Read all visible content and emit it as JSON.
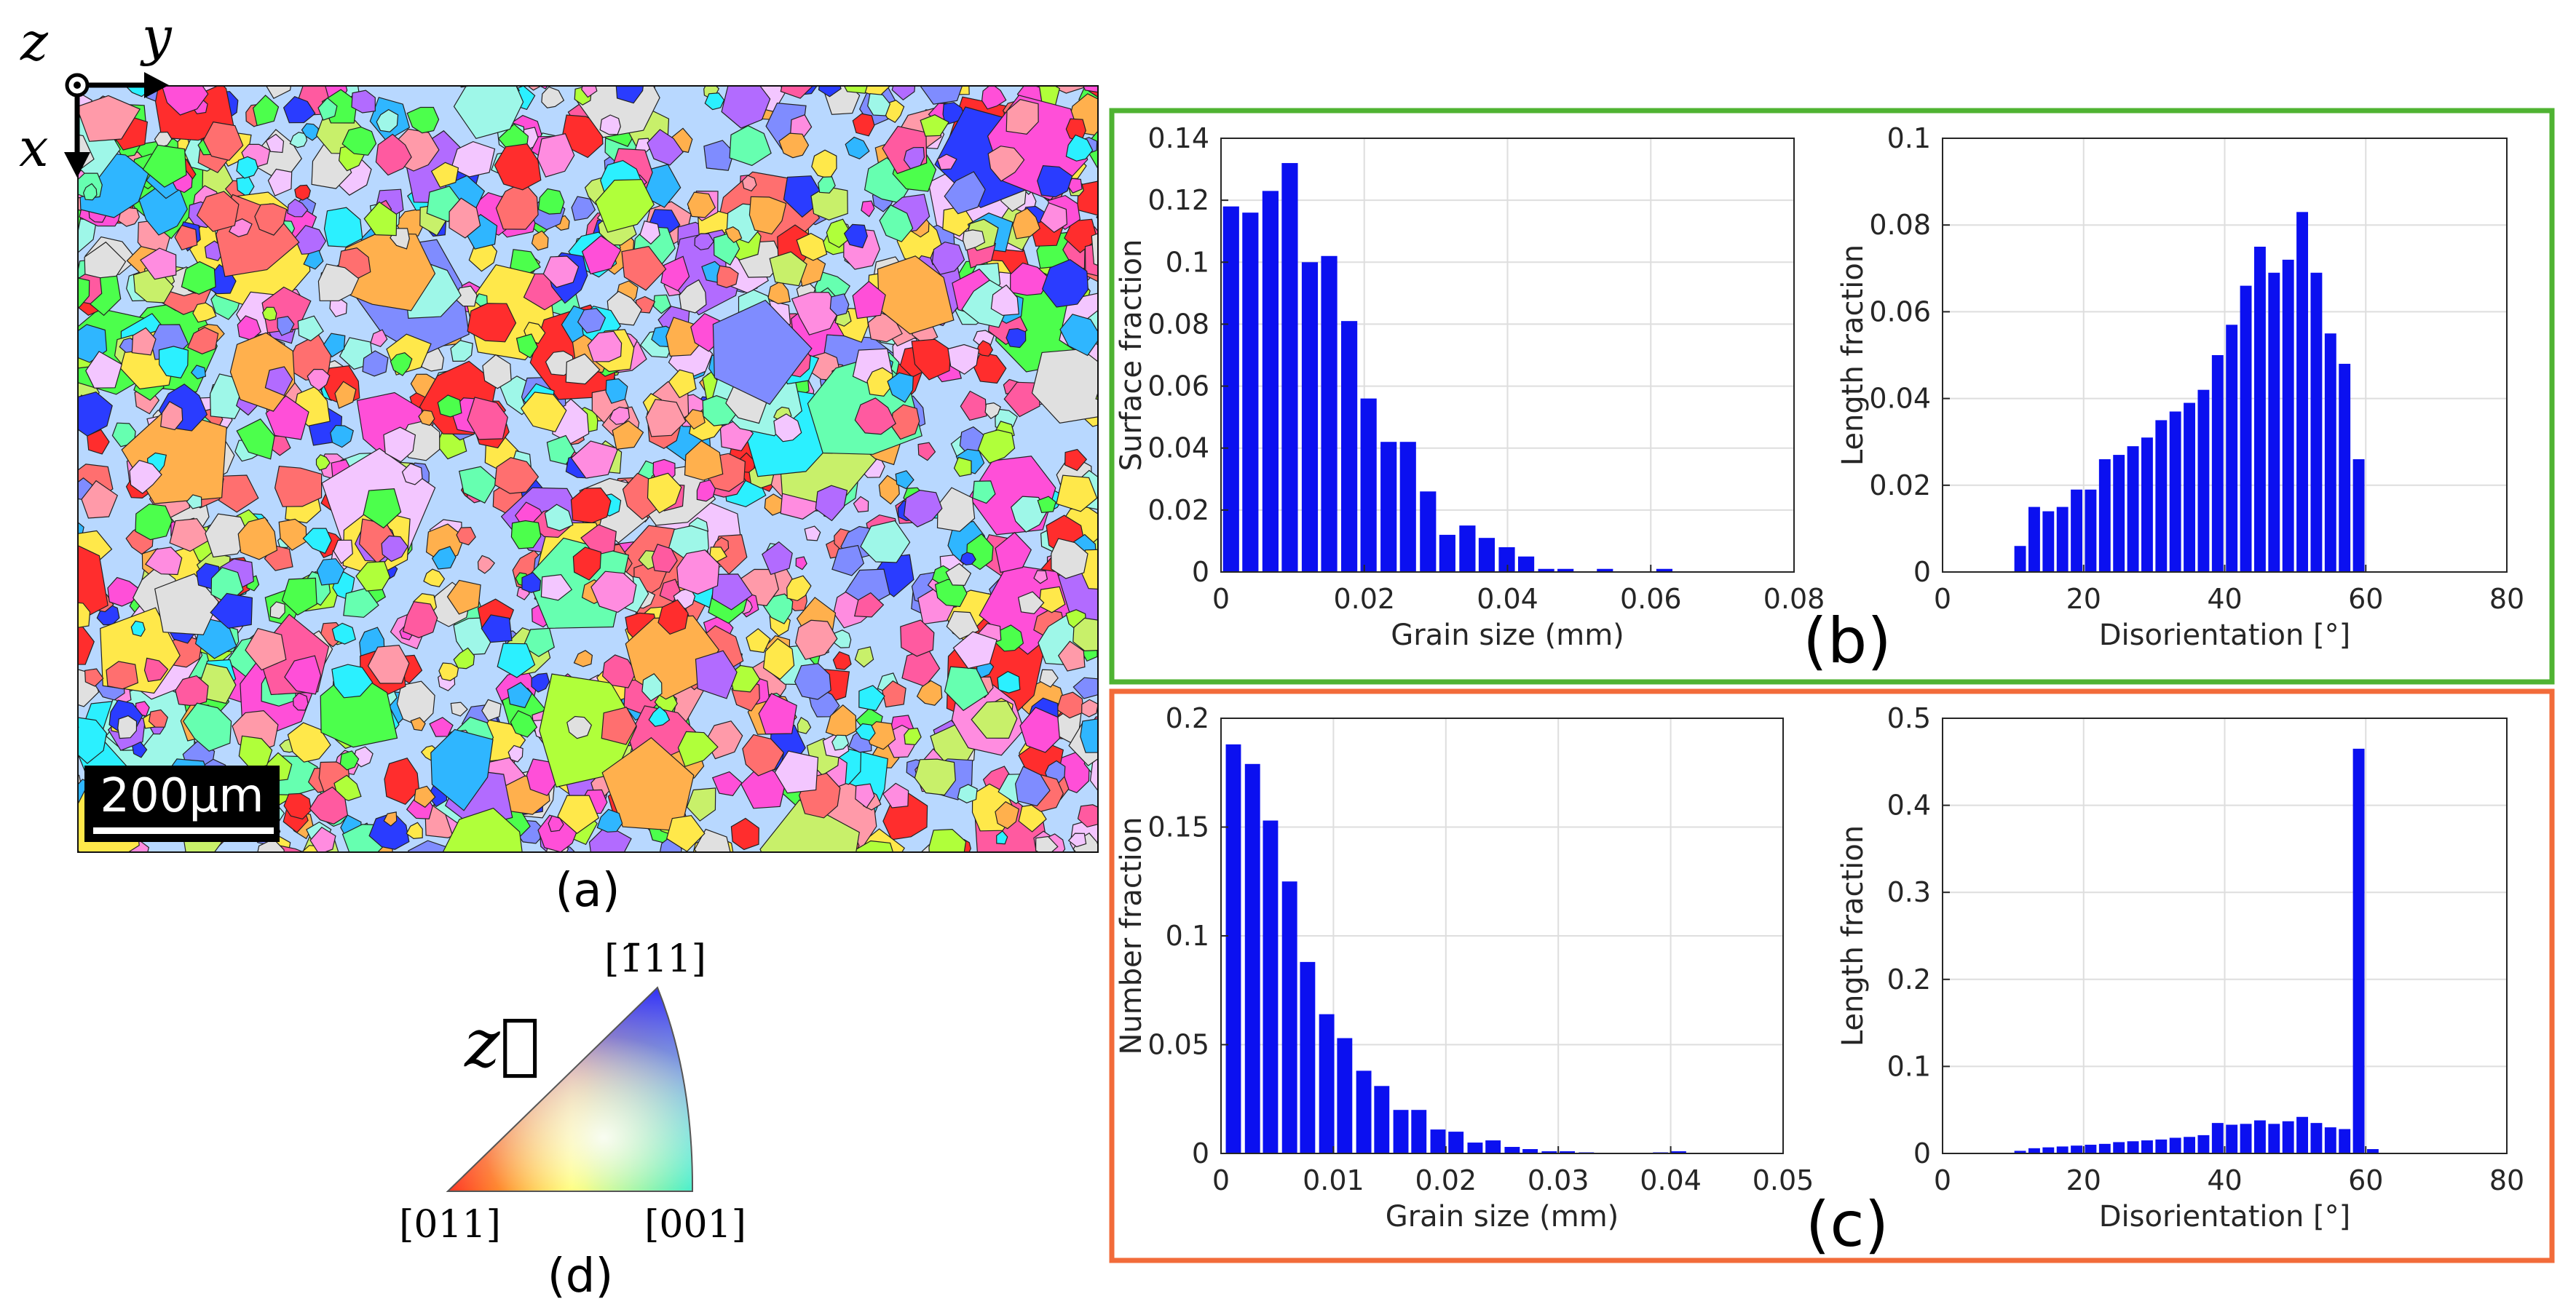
{
  "colors": {
    "bar": "#0b10f0",
    "grid": "#dedede",
    "axis": "#262626",
    "panel_b_border": "#4fb332",
    "panel_c_border": "#f26b3a",
    "scalebar_bg": "#000000",
    "scalebar_fg": "#ffffff"
  },
  "map": {
    "label": "(a)",
    "scale_bar": "200µm",
    "axes": {
      "z": "z",
      "y": "y",
      "x": "x"
    },
    "grain_palette": [
      "#ff2d2d",
      "#ff4fd8",
      "#ff8ce0",
      "#2bf0ff",
      "#4cff4c",
      "#ffe84a",
      "#7f8cff",
      "#b26bff",
      "#ffb04d",
      "#c8f06a",
      "#2fb6ff",
      "#ff6f6f",
      "#f3c6ff",
      "#9ef7e8",
      "#2a3cff",
      "#ff9aa9",
      "#e0e0e0",
      "#66ffb0",
      "#ff5aa0",
      "#b0ff3a"
    ]
  },
  "ipf": {
    "label": "(d)",
    "direction_symbol": "z⃗",
    "corners": {
      "top": "[1̄11]",
      "left": "[011]",
      "right": "[001]"
    }
  },
  "panel_b": {
    "label": "(b)"
  },
  "panel_c": {
    "label": "(c)"
  },
  "chart_data": [
    {
      "id": "b_left",
      "type": "bar",
      "xlabel": "Grain size (mm)",
      "ylabel": "Surface fraction",
      "xlim": [
        0,
        0.08
      ],
      "ylim": [
        0,
        0.14
      ],
      "xticks": [
        0,
        0.02,
        0.04,
        0.06,
        0.08
      ],
      "xtick_labels": [
        "0",
        "0.02",
        "0.04",
        "0.06",
        "0.08"
      ],
      "yticks": [
        0,
        0.02,
        0.04,
        0.06,
        0.08,
        0.1,
        0.12,
        0.14
      ],
      "ytick_labels": [
        "0",
        "0.02",
        "0.04",
        "0.06",
        "0.08",
        "0.1",
        "0.12",
        "0.14"
      ],
      "bin_width": 0.00275,
      "x": [
        0.0014,
        0.0041,
        0.0069,
        0.0096,
        0.0124,
        0.0151,
        0.0179,
        0.0206,
        0.0234,
        0.0261,
        0.0289,
        0.0316,
        0.0344,
        0.0371,
        0.0399,
        0.0426,
        0.0454,
        0.0481,
        0.0509,
        0.0536,
        0.0564,
        0.0591,
        0.0619,
        0.0646
      ],
      "values": [
        0.118,
        0.116,
        0.123,
        0.132,
        0.1,
        0.102,
        0.081,
        0.056,
        0.042,
        0.042,
        0.026,
        0.012,
        0.015,
        0.011,
        0.008,
        0.005,
        0.001,
        0.001,
        0,
        0.001,
        0,
        0,
        0.001,
        0
      ]
    },
    {
      "id": "b_right",
      "type": "bar",
      "xlabel": "Disorientation [°]",
      "ylabel": "Length fraction",
      "xlim": [
        0,
        80
      ],
      "ylim": [
        0,
        0.1
      ],
      "xticks": [
        0,
        20,
        40,
        60,
        80
      ],
      "xtick_labels": [
        "0",
        "20",
        "40",
        "60",
        "80"
      ],
      "yticks": [
        0,
        0.02,
        0.04,
        0.06,
        0.08,
        0.1
      ],
      "ytick_labels": [
        "0",
        "0.02",
        "0.04",
        "0.06",
        "0.08",
        "0.1"
      ],
      "bin_width": 2,
      "x": [
        11,
        13,
        15,
        17,
        19,
        21,
        23,
        25,
        27,
        29,
        31,
        33,
        35,
        37,
        39,
        41,
        43,
        45,
        47,
        49,
        51,
        53,
        55,
        57,
        59
      ],
      "values": [
        0.006,
        0.015,
        0.014,
        0.015,
        0.019,
        0.019,
        0.026,
        0.027,
        0.029,
        0.031,
        0.035,
        0.037,
        0.039,
        0.042,
        0.05,
        0.057,
        0.066,
        0.075,
        0.069,
        0.072,
        0.083,
        0.069,
        0.055,
        0.048,
        0.026
      ]
    },
    {
      "id": "c_left",
      "type": "bar",
      "xlabel": "Grain size (mm)",
      "ylabel": "Number fraction",
      "xlim": [
        0,
        0.05
      ],
      "ylim": [
        0,
        0.2
      ],
      "xticks": [
        0,
        0.01,
        0.02,
        0.03,
        0.04,
        0.05
      ],
      "xtick_labels": [
        "0",
        "0.01",
        "0.02",
        "0.03",
        "0.04",
        "0.05"
      ],
      "yticks": [
        0,
        0.05,
        0.1,
        0.15,
        0.2
      ],
      "ytick_labels": [
        "0",
        "0.05",
        "0.1",
        "0.15",
        "0.2"
      ],
      "bin_width": 0.00165,
      "x": [
        0.0011,
        0.0028,
        0.0044,
        0.0061,
        0.0077,
        0.0094,
        0.011,
        0.0127,
        0.0143,
        0.016,
        0.0176,
        0.0193,
        0.0209,
        0.0226,
        0.0242,
        0.0259,
        0.0275,
        0.0292,
        0.0308,
        0.0325,
        0.0341,
        0.0358,
        0.0374,
        0.0391,
        0.0407
      ],
      "values": [
        0.188,
        0.179,
        0.153,
        0.125,
        0.088,
        0.064,
        0.053,
        0.038,
        0.031,
        0.02,
        0.02,
        0.011,
        0.01,
        0.005,
        0.006,
        0.003,
        0.002,
        0.001,
        0.001,
        0.0005,
        0,
        0,
        0.0003,
        0.0005,
        0.001
      ]
    },
    {
      "id": "c_right",
      "type": "bar",
      "xlabel": "Disorientation [°]",
      "ylabel": "Length fraction",
      "xlim": [
        0,
        80
      ],
      "ylim": [
        0,
        0.5
      ],
      "xticks": [
        0,
        20,
        40,
        60,
        80
      ],
      "xtick_labels": [
        "0",
        "20",
        "40",
        "60",
        "80"
      ],
      "yticks": [
        0,
        0.1,
        0.2,
        0.3,
        0.4,
        0.5
      ],
      "ytick_labels": [
        "0",
        "0.1",
        "0.2",
        "0.3",
        "0.4",
        "0.5"
      ],
      "bin_width": 2,
      "x": [
        11,
        13,
        15,
        17,
        19,
        21,
        23,
        25,
        27,
        29,
        31,
        33,
        35,
        37,
        39,
        41,
        43,
        45,
        47,
        49,
        51,
        53,
        55,
        57,
        59,
        61
      ],
      "values": [
        0.003,
        0.006,
        0.007,
        0.008,
        0.009,
        0.01,
        0.011,
        0.013,
        0.014,
        0.015,
        0.016,
        0.018,
        0.019,
        0.021,
        0.035,
        0.033,
        0.034,
        0.038,
        0.034,
        0.037,
        0.042,
        0.035,
        0.03,
        0.028,
        0.465,
        0.005
      ]
    }
  ]
}
